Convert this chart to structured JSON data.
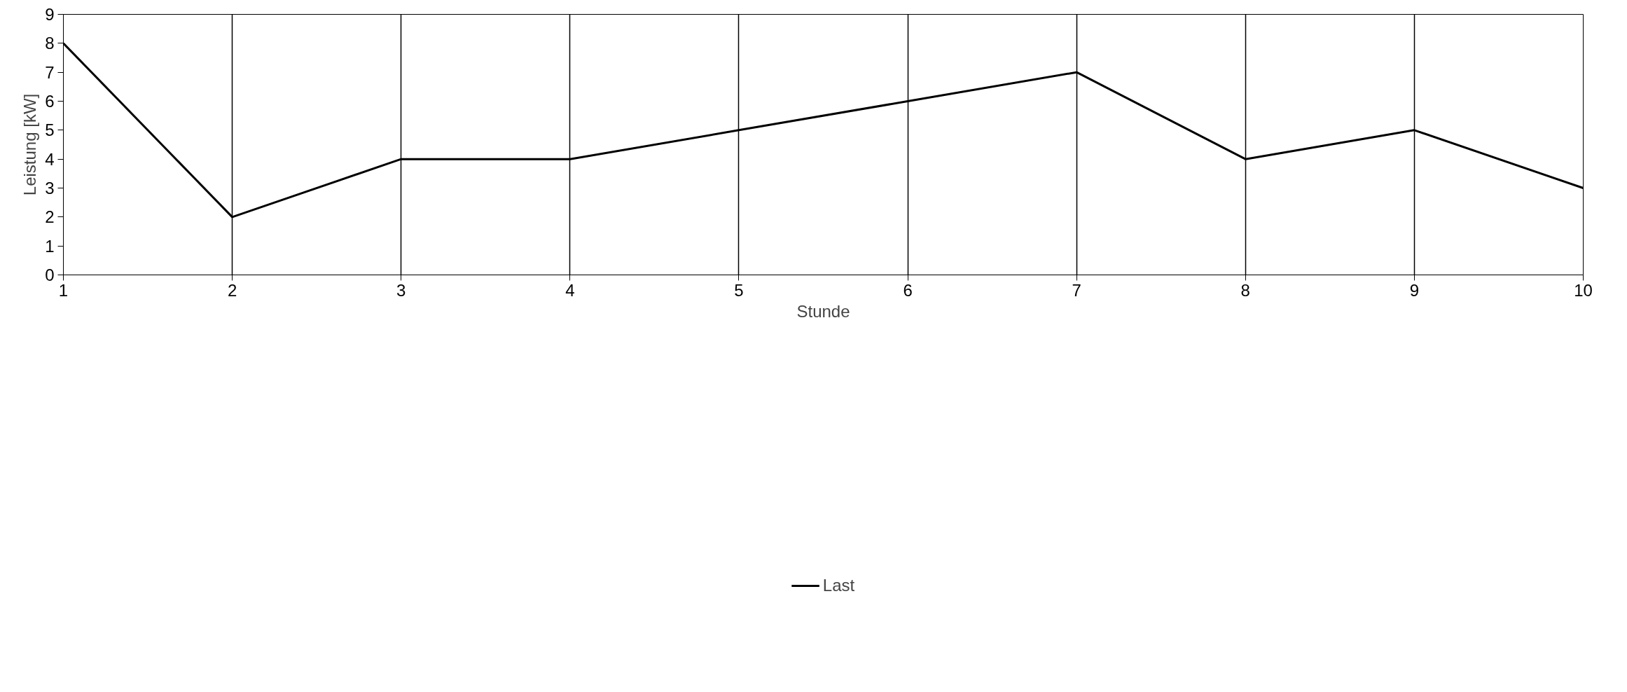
{
  "chart_data": {
    "type": "line",
    "xlabel": "Stunde",
    "ylabel": "Leistung [kW]",
    "x": [
      1,
      2,
      3,
      4,
      5,
      6,
      7,
      8,
      9,
      10
    ],
    "series": [
      {
        "name": "Last",
        "color": "#000000",
        "values": [
          8,
          2,
          4,
          4,
          5,
          6,
          7,
          4,
          5,
          3
        ]
      }
    ],
    "xlim": [
      1,
      10
    ],
    "ylim": [
      0,
      9
    ],
    "xticks": [
      1,
      2,
      3,
      4,
      5,
      6,
      7,
      8,
      9,
      10
    ],
    "yticks": [
      0,
      1,
      2,
      3,
      4,
      5,
      6,
      7,
      8,
      9
    ],
    "grid": "x",
    "legend": "bottom",
    "marker": "none",
    "line_style": "solid"
  }
}
